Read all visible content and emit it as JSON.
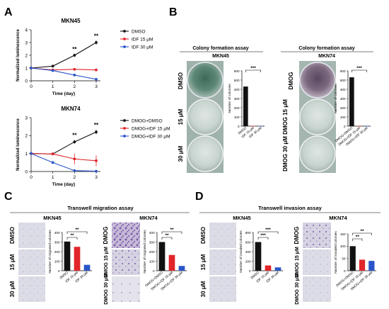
{
  "panelA": {
    "letter": "A",
    "legend_top": [
      "DMSO",
      "IDF 15 μM",
      "IDF 30 μM"
    ],
    "legend_bottom": [
      "DMOG+DMSO",
      "DMOG+IDF 15 μM",
      "DMOG+IDF 30 μM"
    ],
    "colors": {
      "black": "#111111",
      "red": "#e0252b",
      "blue": "#2a55c8"
    }
  },
  "panelB": {
    "letter": "B",
    "assay": "Colony formation assay",
    "cell_left": "MKN45",
    "cell_right": "MKN74",
    "rows_left": [
      "DMSO",
      "15 μM",
      "30 μM"
    ],
    "rows_right": [
      "DMOG",
      "DMOG 15 μM",
      "DMOG 30 μM"
    ],
    "ylabel": "Number of colonies",
    "sig": "***"
  },
  "panelC": {
    "letter": "C",
    "assay": "Transwell migration assay",
    "cell_left": "MKN45",
    "cell_right": "MKN74",
    "rows_left": [
      "DMSO",
      "15 μM",
      "30 μM"
    ],
    "rows_right": [
      "DMOG",
      "DMOG 15 μM",
      "DMOG 30 μM"
    ],
    "ylabel": "Number of migrated colonies",
    "sig": "**"
  },
  "panelD": {
    "letter": "D",
    "assay": "Transwell invasion assay",
    "cell_left": "MKN45",
    "cell_right": "MKN74",
    "rows_left": [
      "DMSO",
      "15 μM",
      "30 μM"
    ],
    "rows_right": [
      "DMOG",
      "DMOG 15 μM",
      "DMOG 30 μM"
    ],
    "ylabel_left": "Number of invaded colonies",
    "ylabel_right": "Number of invaded colonies",
    "sig_a": "**",
    "sig_b": "***"
  },
  "chart_data": [
    {
      "id": "A-top",
      "type": "line",
      "title": "MKN45",
      "xlabel": "Time (day)",
      "ylabel": "Normalized luminescence",
      "x": [
        0,
        1,
        2,
        3
      ],
      "xlim": [
        0,
        3
      ],
      "ylim": [
        0,
        4
      ],
      "yticks": [
        0,
        1,
        2,
        3,
        4
      ],
      "series": [
        {
          "name": "DMSO",
          "color": "#111111",
          "values": [
            1.0,
            1.15,
            2.0,
            3.0
          ],
          "err": [
            0.05,
            0.1,
            0.12,
            0.15
          ]
        },
        {
          "name": "IDF 15 μM",
          "color": "#e0252b",
          "values": [
            1.0,
            0.85,
            0.9,
            0.85
          ],
          "err": [
            0.05,
            0.08,
            0.08,
            0.08
          ]
        },
        {
          "name": "IDF 30 μM",
          "color": "#2a55c8",
          "values": [
            1.0,
            0.8,
            0.45,
            0.12
          ],
          "err": [
            0.05,
            0.06,
            0.06,
            0.04
          ]
        }
      ],
      "annotations": [
        {
          "x": 2,
          "text": "**"
        },
        {
          "x": 3,
          "text": "**"
        }
      ]
    },
    {
      "id": "A-bottom",
      "type": "line",
      "title": "MKN74",
      "xlabel": "Time (day)",
      "ylabel": "Normalized luminescence",
      "x": [
        0,
        1,
        2,
        3
      ],
      "xlim": [
        0,
        3
      ],
      "ylim": [
        0,
        3
      ],
      "yticks": [
        0,
        1,
        2,
        3
      ],
      "series": [
        {
          "name": "DMOG+DMSO",
          "color": "#111111",
          "values": [
            1.0,
            0.98,
            1.65,
            2.2
          ],
          "err": [
            0.03,
            0.05,
            0.1,
            0.12
          ]
        },
        {
          "name": "DMOG+IDF 15 μM",
          "color": "#e0252b",
          "values": [
            1.0,
            0.98,
            0.7,
            0.6
          ],
          "err": [
            0.03,
            0.05,
            0.3,
            0.3
          ]
        },
        {
          "name": "DMOG+IDF 30 μM",
          "color": "#2a55c8",
          "values": [
            1.0,
            0.5,
            0.05,
            0.02
          ],
          "err": [
            0.03,
            0.05,
            0.03,
            0.02
          ]
        }
      ],
      "annotations": [
        {
          "x": 2,
          "text": "**"
        },
        {
          "x": 3,
          "text": "**"
        }
      ]
    },
    {
      "id": "B-left",
      "type": "bar",
      "title": "",
      "ylabel": "Number of colonies",
      "ylim": [
        0,
        600
      ],
      "yticks": [
        0,
        100,
        200,
        300,
        400,
        500,
        600
      ],
      "categories": [
        "DMSO",
        "IDF 15 μM",
        "IDF 30 μM"
      ],
      "values": [
        430,
        2,
        1
      ],
      "colors": [
        "#111111",
        "#e0252b",
        "#2a55c8"
      ]
    },
    {
      "id": "B-right",
      "type": "bar",
      "title": "",
      "ylabel": "Number of colonies",
      "ylim": [
        0,
        600
      ],
      "yticks": [
        0,
        100,
        200,
        300,
        400,
        500,
        600
      ],
      "categories": [
        "DMOG+DMSO",
        "DMOG+IDF 15 μM",
        "DMOG+IDF 30 μM"
      ],
      "values": [
        530,
        2,
        1
      ],
      "colors": [
        "#111111",
        "#e0252b",
        "#2a55c8"
      ]
    },
    {
      "id": "C-left",
      "type": "bar",
      "title": "",
      "ylabel": "Number of migrated colonies",
      "ylim": [
        0,
        400
      ],
      "yticks": [
        0,
        100,
        200,
        300,
        400
      ],
      "categories": [
        "DMSO",
        "IDF 15 μM",
        "IDF 30 μM"
      ],
      "values": [
        305,
        250,
        62
      ],
      "colors": [
        "#111111",
        "#e0252b",
        "#2a55c8"
      ]
    },
    {
      "id": "C-right",
      "type": "bar",
      "title": "",
      "ylabel": "Number of migrated colonies",
      "ylim": [
        0,
        400
      ],
      "yticks": [
        0,
        100,
        200,
        300,
        400
      ],
      "categories": [
        "DMOG+DMSO",
        "DMOG+IDF 15 μM",
        "DMOG+IDF 30 μM"
      ],
      "values": [
        300,
        165,
        50
      ],
      "colors": [
        "#111111",
        "#e0252b",
        "#2a55c8"
      ]
    },
    {
      "id": "D-left",
      "type": "bar",
      "title": "",
      "ylabel": "Number of invaded colonies",
      "ylim": [
        0,
        800
      ],
      "yticks": [
        0,
        200,
        400,
        600,
        800
      ],
      "categories": [
        "DMSO",
        "IDF 15 μM",
        "IDF 30 μM"
      ],
      "values": [
        600,
        110,
        70
      ],
      "colors": [
        "#111111",
        "#e0252b",
        "#2a55c8"
      ]
    },
    {
      "id": "D-right",
      "type": "bar",
      "title": "",
      "ylabel": "Number of invaded colonies",
      "ylim": [
        0,
        150
      ],
      "yticks": [
        0,
        50,
        100,
        150
      ],
      "categories": [
        "DMOG+DMSO",
        "DMOG+IDF 15 μM",
        "DMOG+IDF 30 μM"
      ],
      "values": [
        100,
        45,
        40
      ],
      "colors": [
        "#111111",
        "#e0252b",
        "#2a55c8"
      ]
    }
  ]
}
